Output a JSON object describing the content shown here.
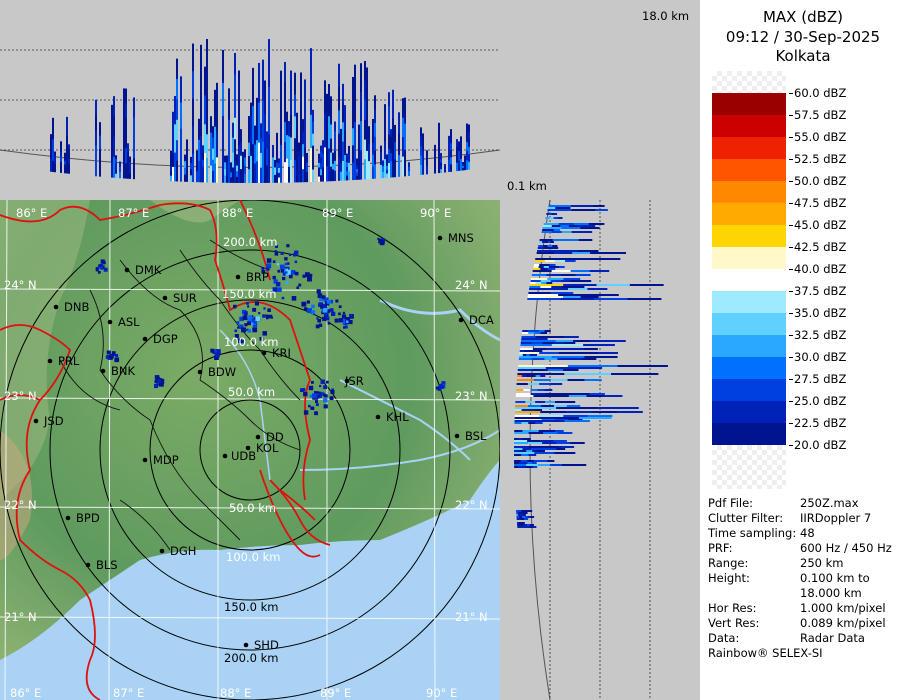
{
  "header": {
    "title": "MAX (dBZ)",
    "datetime": "09:12 / 30-Sep-2025",
    "station": "Kolkata"
  },
  "height_labels": {
    "top": "18.0 km",
    "bottom": "0.1 km"
  },
  "legend": [
    {
      "label": "60.0 dBZ",
      "color": "#f4f4f4"
    },
    {
      "label": "57.5 dBZ",
      "color": "#9a0000"
    },
    {
      "label": "55.0 dBZ",
      "color": "#cc0000"
    },
    {
      "label": "52.5 dBZ",
      "color": "#ee2200"
    },
    {
      "label": "50.0 dBZ",
      "color": "#ff5500"
    },
    {
      "label": "47.5 dBZ",
      "color": "#ff8800"
    },
    {
      "label": "45.0 dBZ",
      "color": "#ffaa00"
    },
    {
      "label": "42.5 dBZ",
      "color": "#ffd500"
    },
    {
      "label": "40.0 dBZ",
      "color": "#fff8c8"
    },
    {
      "label": "37.5 dBZ",
      "color": "#ffffff"
    },
    {
      "label": "35.0 dBZ",
      "color": "#9eeaff"
    },
    {
      "label": "32.5 dBZ",
      "color": "#5fd0ff"
    },
    {
      "label": "30.0 dBZ",
      "color": "#2aa8ff"
    },
    {
      "label": "27.5 dBZ",
      "color": "#0070ff"
    },
    {
      "label": "25.0 dBZ",
      "color": "#0040e0"
    },
    {
      "label": "22.5 dBZ",
      "color": "#0022b8"
    },
    {
      "label": "20.0 dBZ",
      "color": "#001490"
    }
  ],
  "info": [
    {
      "key": "Pdf File:",
      "value": "250Z.max"
    },
    {
      "key": "Clutter Filter:",
      "value": "IIRDoppler 7"
    },
    {
      "key": "Time sampling:",
      "value": "48"
    },
    {
      "key": "PRF:",
      "value": "600 Hz / 450 Hz"
    },
    {
      "key": "Range:",
      "value": "250 km"
    },
    {
      "key": "Height:",
      "value": "0.100 km to"
    },
    {
      "key": "",
      "value": "18.000 km"
    },
    {
      "key": "Hor Res:",
      "value": "1.000 km/pixel"
    },
    {
      "key": "Vert Res:",
      "value": "0.089 km/pixel"
    },
    {
      "key": "Data:",
      "value": "Radar Data"
    }
  ],
  "footer": "Rainbow® SELEX-SI",
  "map": {
    "lon_labels": [
      "86° E",
      "87° E",
      "88° E",
      "89° E",
      "90° E"
    ],
    "lat_labels": [
      "24° N",
      "23° N",
      "22° N",
      "21° N"
    ],
    "range_labels": [
      "200.0 km",
      "150.0 km",
      "100.0 km",
      "50.0 km",
      "50.0 km",
      "100.0 km",
      "150.0 km",
      "200.0 km"
    ],
    "cities": [
      {
        "name": "MNS"
      },
      {
        "name": "DMK"
      },
      {
        "name": "BRP"
      },
      {
        "name": "DNB"
      },
      {
        "name": "SUR"
      },
      {
        "name": "ASL"
      },
      {
        "name": "DGP"
      },
      {
        "name": "DCA"
      },
      {
        "name": "PRL"
      },
      {
        "name": "BNK"
      },
      {
        "name": "BDW"
      },
      {
        "name": "KRI"
      },
      {
        "name": "JSR"
      },
      {
        "name": "KHL"
      },
      {
        "name": "JSD"
      },
      {
        "name": "BSL"
      },
      {
        "name": "DD"
      },
      {
        "name": "KOL"
      },
      {
        "name": "MDP"
      },
      {
        "name": "UDB"
      },
      {
        "name": "BPD"
      },
      {
        "name": "DGH"
      },
      {
        "name": "BLS"
      },
      {
        "name": "SHD"
      }
    ]
  },
  "colors": {
    "land": "#6ea36a",
    "sea": "#a9d2f5",
    "border": "#e01010",
    "panel_bg": "#c8c8c8"
  }
}
